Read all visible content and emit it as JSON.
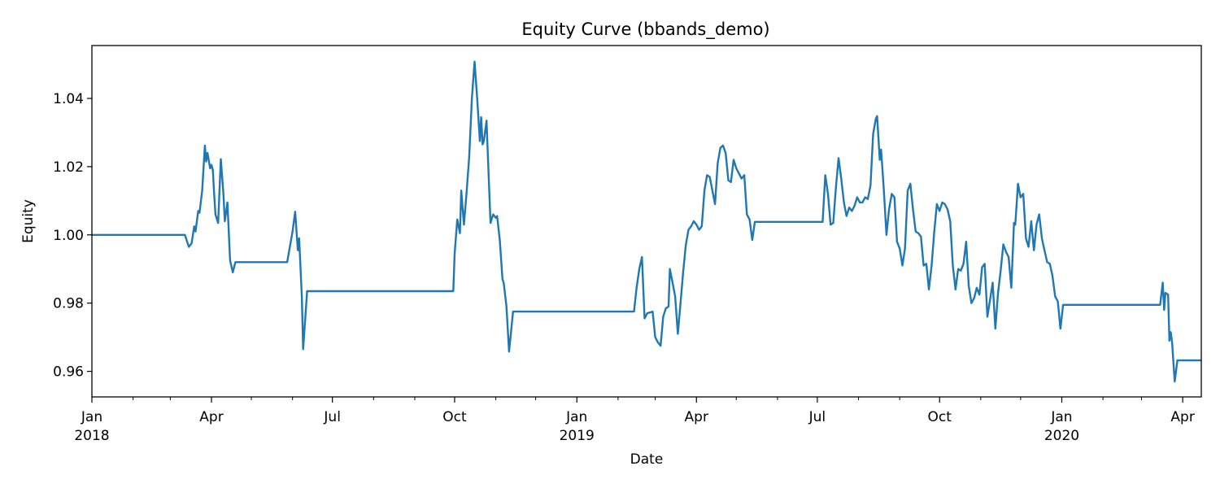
{
  "chart_data": {
    "type": "line",
    "title": "Equity Curve (bbands_demo)",
    "xlabel": "Date",
    "ylabel": "Equity",
    "grid": false,
    "legend": "none",
    "x_range": [
      "2018-01-01",
      "2020-04-15"
    ],
    "ylim": [
      0.9525,
      1.0555
    ],
    "y_ticks": [
      {
        "value": 0.96,
        "label": "0.96"
      },
      {
        "value": 0.98,
        "label": "0.98"
      },
      {
        "value": 1.0,
        "label": "1.00"
      },
      {
        "value": 1.02,
        "label": "1.02"
      },
      {
        "value": 1.04,
        "label": "1.04"
      }
    ],
    "x_major_ticks": [
      {
        "date": "2018-01-01",
        "label": "Jan",
        "sublabel": "2018"
      },
      {
        "date": "2018-04-01",
        "label": "Apr",
        "sublabel": ""
      },
      {
        "date": "2018-07-01",
        "label": "Jul",
        "sublabel": ""
      },
      {
        "date": "2018-10-01",
        "label": "Oct",
        "sublabel": ""
      },
      {
        "date": "2019-01-01",
        "label": "Jan",
        "sublabel": "2019"
      },
      {
        "date": "2019-04-01",
        "label": "Apr",
        "sublabel": ""
      },
      {
        "date": "2019-07-01",
        "label": "Jul",
        "sublabel": ""
      },
      {
        "date": "2019-10-01",
        "label": "Oct",
        "sublabel": ""
      },
      {
        "date": "2020-01-01",
        "label": "Jan",
        "sublabel": "2020"
      },
      {
        "date": "2020-04-01",
        "label": "Apr",
        "sublabel": ""
      }
    ],
    "x_minor_ticks": [
      "2018-02-01",
      "2018-03-01",
      "2018-05-01",
      "2018-06-01",
      "2018-08-01",
      "2018-09-01",
      "2018-11-01",
      "2018-12-01",
      "2019-02-01",
      "2019-03-01",
      "2019-05-01",
      "2019-06-01",
      "2019-08-01",
      "2019-09-01",
      "2019-11-01",
      "2019-12-01",
      "2020-02-01",
      "2020-03-01"
    ],
    "line_color": "#1f77b4",
    "series": [
      {
        "name": "",
        "points": [
          [
            "2018-01-01",
            1.0
          ],
          [
            "2018-03-12",
            1.0
          ],
          [
            "2018-03-15",
            0.9965
          ],
          [
            "2018-03-17",
            0.9975
          ],
          [
            "2018-03-19",
            1.0025
          ],
          [
            "2018-03-20",
            1.001
          ],
          [
            "2018-03-22",
            1.007
          ],
          [
            "2018-03-23",
            1.0065
          ],
          [
            "2018-03-25",
            1.013
          ],
          [
            "2018-03-27",
            1.0262
          ],
          [
            "2018-03-28",
            1.0215
          ],
          [
            "2018-03-29",
            1.024
          ],
          [
            "2018-03-31",
            1.0195
          ],
          [
            "2018-04-01",
            1.0205
          ],
          [
            "2018-04-02",
            1.019
          ],
          [
            "2018-04-03",
            1.012
          ],
          [
            "2018-04-04",
            1.006
          ],
          [
            "2018-04-06",
            1.0035
          ],
          [
            "2018-04-08",
            1.0222
          ],
          [
            "2018-04-10",
            1.012
          ],
          [
            "2018-04-11",
            1.004
          ],
          [
            "2018-04-13",
            1.0095
          ],
          [
            "2018-04-15",
            0.9925
          ],
          [
            "2018-04-17",
            0.989
          ],
          [
            "2018-04-19",
            0.992
          ],
          [
            "2018-05-28",
            0.992
          ],
          [
            "2018-06-01",
            1.001
          ],
          [
            "2018-06-03",
            1.0068
          ],
          [
            "2018-06-05",
            0.9955
          ],
          [
            "2018-06-06",
            0.999
          ],
          [
            "2018-06-08",
            0.982
          ],
          [
            "2018-06-09",
            0.9665
          ],
          [
            "2018-06-12",
            0.9835
          ],
          [
            "2018-09-30",
            0.9835
          ],
          [
            "2018-10-01",
            0.9945
          ],
          [
            "2018-10-03",
            1.0045
          ],
          [
            "2018-10-05",
            1.0005
          ],
          [
            "2018-10-06",
            1.013
          ],
          [
            "2018-10-08",
            1.003
          ],
          [
            "2018-10-10",
            1.0125
          ],
          [
            "2018-10-12",
            1.023
          ],
          [
            "2018-10-14",
            1.04
          ],
          [
            "2018-10-16",
            1.0508
          ],
          [
            "2018-10-18",
            1.04
          ],
          [
            "2018-10-20",
            1.0275
          ],
          [
            "2018-10-21",
            1.0345
          ],
          [
            "2018-10-22",
            1.0265
          ],
          [
            "2018-10-23",
            1.0275
          ],
          [
            "2018-10-25",
            1.0335
          ],
          [
            "2018-10-26",
            1.0235
          ],
          [
            "2018-10-28",
            1.0035
          ],
          [
            "2018-10-30",
            1.006
          ],
          [
            "2018-11-01",
            1.005
          ],
          [
            "2018-11-02",
            1.0055
          ],
          [
            "2018-11-04",
            0.9985
          ],
          [
            "2018-11-06",
            0.987
          ],
          [
            "2018-11-07",
            0.9858
          ],
          [
            "2018-11-09",
            0.979
          ],
          [
            "2018-11-11",
            0.9658
          ],
          [
            "2018-11-14",
            0.9775
          ],
          [
            "2019-02-13",
            0.9775
          ],
          [
            "2019-02-15",
            0.9845
          ],
          [
            "2019-02-17",
            0.99
          ],
          [
            "2019-02-19",
            0.9935
          ],
          [
            "2019-02-21",
            0.9755
          ],
          [
            "2019-02-23",
            0.977
          ],
          [
            "2019-02-27",
            0.9775
          ],
          [
            "2019-03-01",
            0.97
          ],
          [
            "2019-03-03",
            0.9685
          ],
          [
            "2019-03-05",
            0.9675
          ],
          [
            "2019-03-07",
            0.976
          ],
          [
            "2019-03-09",
            0.9785
          ],
          [
            "2019-03-11",
            0.979
          ],
          [
            "2019-03-12",
            0.99
          ],
          [
            "2019-03-14",
            0.986
          ],
          [
            "2019-03-16",
            0.982
          ],
          [
            "2019-03-18",
            0.971
          ],
          [
            "2019-03-20",
            0.98
          ],
          [
            "2019-03-22",
            0.989
          ],
          [
            "2019-03-24",
            0.997
          ],
          [
            "2019-03-26",
            1.0015
          ],
          [
            "2019-03-28",
            1.0025
          ],
          [
            "2019-03-30",
            1.004
          ],
          [
            "2019-04-01",
            1.003
          ],
          [
            "2019-04-03",
            1.0015
          ],
          [
            "2019-04-05",
            1.0025
          ],
          [
            "2019-04-07",
            1.013
          ],
          [
            "2019-04-09",
            1.0175
          ],
          [
            "2019-04-11",
            1.017
          ],
          [
            "2019-04-13",
            1.013
          ],
          [
            "2019-04-15",
            1.009
          ],
          [
            "2019-04-17",
            1.021
          ],
          [
            "2019-04-19",
            1.0255
          ],
          [
            "2019-04-21",
            1.0262
          ],
          [
            "2019-04-23",
            1.024
          ],
          [
            "2019-04-25",
            1.016
          ],
          [
            "2019-04-27",
            1.0155
          ],
          [
            "2019-04-29",
            1.022
          ],
          [
            "2019-05-01",
            1.0195
          ],
          [
            "2019-05-03",
            1.018
          ],
          [
            "2019-05-05",
            1.0165
          ],
          [
            "2019-05-07",
            1.0175
          ],
          [
            "2019-05-09",
            1.006
          ],
          [
            "2019-05-11",
            1.0045
          ],
          [
            "2019-05-13",
            0.9985
          ],
          [
            "2019-05-15",
            1.0038
          ],
          [
            "2019-07-05",
            1.0038
          ],
          [
            "2019-07-07",
            1.0175
          ],
          [
            "2019-07-09",
            1.012
          ],
          [
            "2019-07-11",
            1.003
          ],
          [
            "2019-07-13",
            1.0035
          ],
          [
            "2019-07-15",
            1.014
          ],
          [
            "2019-07-17",
            1.0225
          ],
          [
            "2019-07-19",
            1.0165
          ],
          [
            "2019-07-21",
            1.0095
          ],
          [
            "2019-07-23",
            1.0055
          ],
          [
            "2019-07-25",
            1.008
          ],
          [
            "2019-07-27",
            1.007
          ],
          [
            "2019-07-29",
            1.0085
          ],
          [
            "2019-07-31",
            1.011
          ],
          [
            "2019-08-02",
            1.0095
          ],
          [
            "2019-08-04",
            1.0095
          ],
          [
            "2019-08-06",
            1.011
          ],
          [
            "2019-08-08",
            1.0105
          ],
          [
            "2019-08-10",
            1.0145
          ],
          [
            "2019-08-12",
            1.0295
          ],
          [
            "2019-08-14",
            1.034
          ],
          [
            "2019-08-15",
            1.0348
          ],
          [
            "2019-08-17",
            1.022
          ],
          [
            "2019-08-18",
            1.025
          ],
          [
            "2019-08-20",
            1.0135
          ],
          [
            "2019-08-22",
            1.0
          ],
          [
            "2019-08-24",
            1.0075
          ],
          [
            "2019-08-26",
            1.012
          ],
          [
            "2019-08-28",
            1.011
          ],
          [
            "2019-08-30",
            0.998
          ],
          [
            "2019-09-01",
            0.996
          ],
          [
            "2019-09-03",
            0.991
          ],
          [
            "2019-09-05",
            0.996
          ],
          [
            "2019-09-07",
            1.013
          ],
          [
            "2019-09-09",
            1.015
          ],
          [
            "2019-09-11",
            1.0075
          ],
          [
            "2019-09-13",
            1.001
          ],
          [
            "2019-09-15",
            1.0005
          ],
          [
            "2019-09-17",
            0.9995
          ],
          [
            "2019-09-19",
            0.991
          ],
          [
            "2019-09-21",
            0.9915
          ],
          [
            "2019-09-23",
            0.984
          ],
          [
            "2019-09-25",
            0.991
          ],
          [
            "2019-09-27",
            1.001
          ],
          [
            "2019-09-29",
            1.009
          ],
          [
            "2019-10-01",
            1.007
          ],
          [
            "2019-10-03",
            1.0095
          ],
          [
            "2019-10-05",
            1.009
          ],
          [
            "2019-10-07",
            1.0075
          ],
          [
            "2019-10-09",
            1.004
          ],
          [
            "2019-10-11",
            0.991
          ],
          [
            "2019-10-13",
            0.984
          ],
          [
            "2019-10-15",
            0.99
          ],
          [
            "2019-10-17",
            0.9895
          ],
          [
            "2019-10-19",
            0.9915
          ],
          [
            "2019-10-21",
            0.998
          ],
          [
            "2019-10-23",
            0.985
          ],
          [
            "2019-10-25",
            0.98
          ],
          [
            "2019-10-27",
            0.9815
          ],
          [
            "2019-10-29",
            0.9845
          ],
          [
            "2019-10-31",
            0.9825
          ],
          [
            "2019-11-02",
            0.9905
          ],
          [
            "2019-11-04",
            0.9915
          ],
          [
            "2019-11-06",
            0.976
          ],
          [
            "2019-11-08",
            0.981
          ],
          [
            "2019-11-10",
            0.986
          ],
          [
            "2019-11-12",
            0.9725
          ],
          [
            "2019-11-14",
            0.983
          ],
          [
            "2019-11-16",
            0.9895
          ],
          [
            "2019-11-18",
            0.9972
          ],
          [
            "2019-11-20",
            0.995
          ],
          [
            "2019-11-22",
            0.9935
          ],
          [
            "2019-11-24",
            0.9845
          ],
          [
            "2019-11-26",
            1.0035
          ],
          [
            "2019-11-27",
            1.003
          ],
          [
            "2019-11-29",
            1.015
          ],
          [
            "2019-12-01",
            1.011
          ],
          [
            "2019-12-03",
            1.012
          ],
          [
            "2019-12-05",
            0.999
          ],
          [
            "2019-12-07",
            0.9965
          ],
          [
            "2019-12-09",
            1.004
          ],
          [
            "2019-12-11",
            0.9955
          ],
          [
            "2019-12-13",
            1.003
          ],
          [
            "2019-12-15",
            1.006
          ],
          [
            "2019-12-17",
            0.999
          ],
          [
            "2019-12-19",
            0.9955
          ],
          [
            "2019-12-21",
            0.992
          ],
          [
            "2019-12-23",
            0.9915
          ],
          [
            "2019-12-25",
            0.988
          ],
          [
            "2019-12-27",
            0.982
          ],
          [
            "2019-12-29",
            0.9805
          ],
          [
            "2019-12-31",
            0.9725
          ],
          [
            "2020-01-02",
            0.9795
          ],
          [
            "2020-03-15",
            0.9795
          ],
          [
            "2020-03-17",
            0.986
          ],
          [
            "2020-03-18",
            0.978
          ],
          [
            "2020-03-19",
            0.983
          ],
          [
            "2020-03-21",
            0.9825
          ],
          [
            "2020-03-22",
            0.969
          ],
          [
            "2020-03-23",
            0.9715
          ],
          [
            "2020-03-24",
            0.9685
          ],
          [
            "2020-03-26",
            0.957
          ],
          [
            "2020-03-28",
            0.9632
          ],
          [
            "2020-04-15",
            0.9632
          ]
        ]
      }
    ]
  }
}
